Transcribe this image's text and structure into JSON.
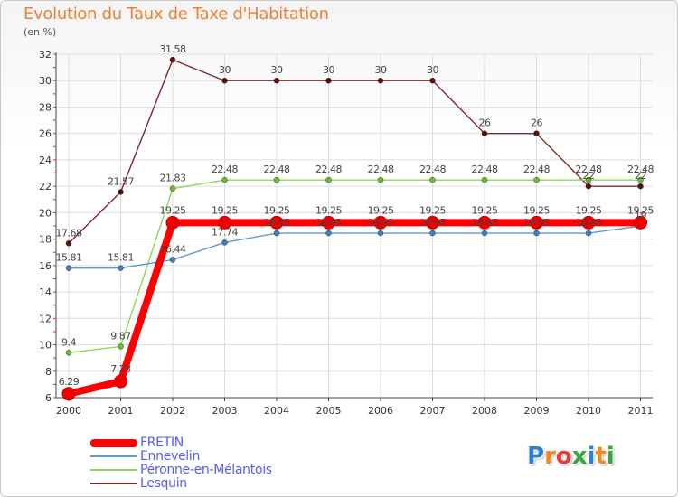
{
  "title": "Evolution du Taux de Taxe d'Habitation",
  "subtitle": "(en %)",
  "logo_text": "Proxiti",
  "chart_data": {
    "type": "line",
    "title": "Evolution du Taux de Taxe d'Habitation",
    "subtitle": "(en %)",
    "xlabel": "",
    "ylabel": "",
    "x": [
      "2000",
      "2001",
      "2002",
      "2003",
      "2004",
      "2005",
      "2006",
      "2007",
      "2008",
      "2009",
      "2010",
      "2011"
    ],
    "ylim": [
      6,
      32
    ],
    "yticks": [
      6,
      8,
      10,
      12,
      14,
      16,
      18,
      20,
      22,
      24,
      26,
      28,
      30,
      32
    ],
    "grid": true,
    "legend_position": "bottom-left",
    "series": [
      {
        "name": "FRETIN",
        "color": "#ff0000",
        "values": [
          6.29,
          7.23,
          19.25,
          19.25,
          19.25,
          19.25,
          19.25,
          19.25,
          19.25,
          19.25,
          19.25,
          19.25
        ],
        "labels": [
          "6.29",
          "7.23",
          "19.25",
          "19.25",
          "19.25",
          "19.25",
          "19.25",
          "19.25",
          "19.25",
          "19.25",
          "19.25",
          "19.25"
        ]
      },
      {
        "name": "Ennevelin",
        "color": "#5b9bd5",
        "values": [
          15.81,
          15.81,
          16.44,
          17.74,
          18.45,
          18.45,
          18.45,
          18.45,
          18.45,
          18.45,
          18.45,
          19
        ],
        "labels": [
          "15.81",
          "15.81",
          "16.44",
          "17.74",
          "18.45",
          "18.45",
          "18.45",
          "18.45",
          "18.45",
          "18.45",
          "18.45",
          "19"
        ]
      },
      {
        "name": "Péronne-en-Mélantois",
        "color": "#8ed65a",
        "values": [
          9.4,
          9.87,
          21.83,
          22.48,
          22.48,
          22.48,
          22.48,
          22.48,
          22.48,
          22.48,
          22.48,
          22.48
        ],
        "labels": [
          "9.4",
          "9.87",
          "21.83",
          "22.48",
          "22.48",
          "22.48",
          "22.48",
          "22.48",
          "22.48",
          "22.48",
          "22.48",
          "22.48"
        ]
      },
      {
        "name": "Lesquin",
        "color": "#7a2a2a",
        "values": [
          17.68,
          21.57,
          31.58,
          30,
          30,
          30,
          30,
          30,
          26,
          26,
          22,
          22
        ],
        "labels": [
          "17.68",
          "21.57",
          "31.58",
          "30",
          "30",
          "30",
          "30",
          "30",
          "26",
          "26",
          "22",
          "22"
        ]
      }
    ]
  }
}
